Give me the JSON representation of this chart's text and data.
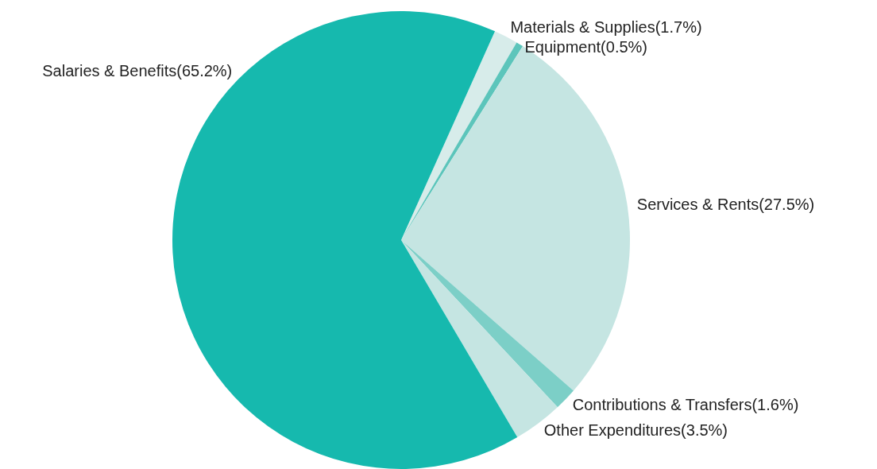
{
  "chart_data": {
    "type": "pie",
    "categories": [
      "Materials & Supplies",
      "Equipment",
      "Services & Rents",
      "Contributions & Transfers",
      "Other Expenditures",
      "Salaries & Benefits"
    ],
    "values": [
      1.7,
      0.5,
      27.5,
      1.6,
      3.5,
      65.2
    ],
    "value_labels": [
      "(1.7%)",
      "(0.5%)",
      "(27.5%)",
      "(1.6%)",
      "(3.5%)",
      "(65.2%)"
    ],
    "colors": [
      "#d7ecea",
      "#5cc5bb",
      "#c5e5e2",
      "#7ccfc7",
      "#c5e5e2",
      "#16b9ae"
    ]
  }
}
